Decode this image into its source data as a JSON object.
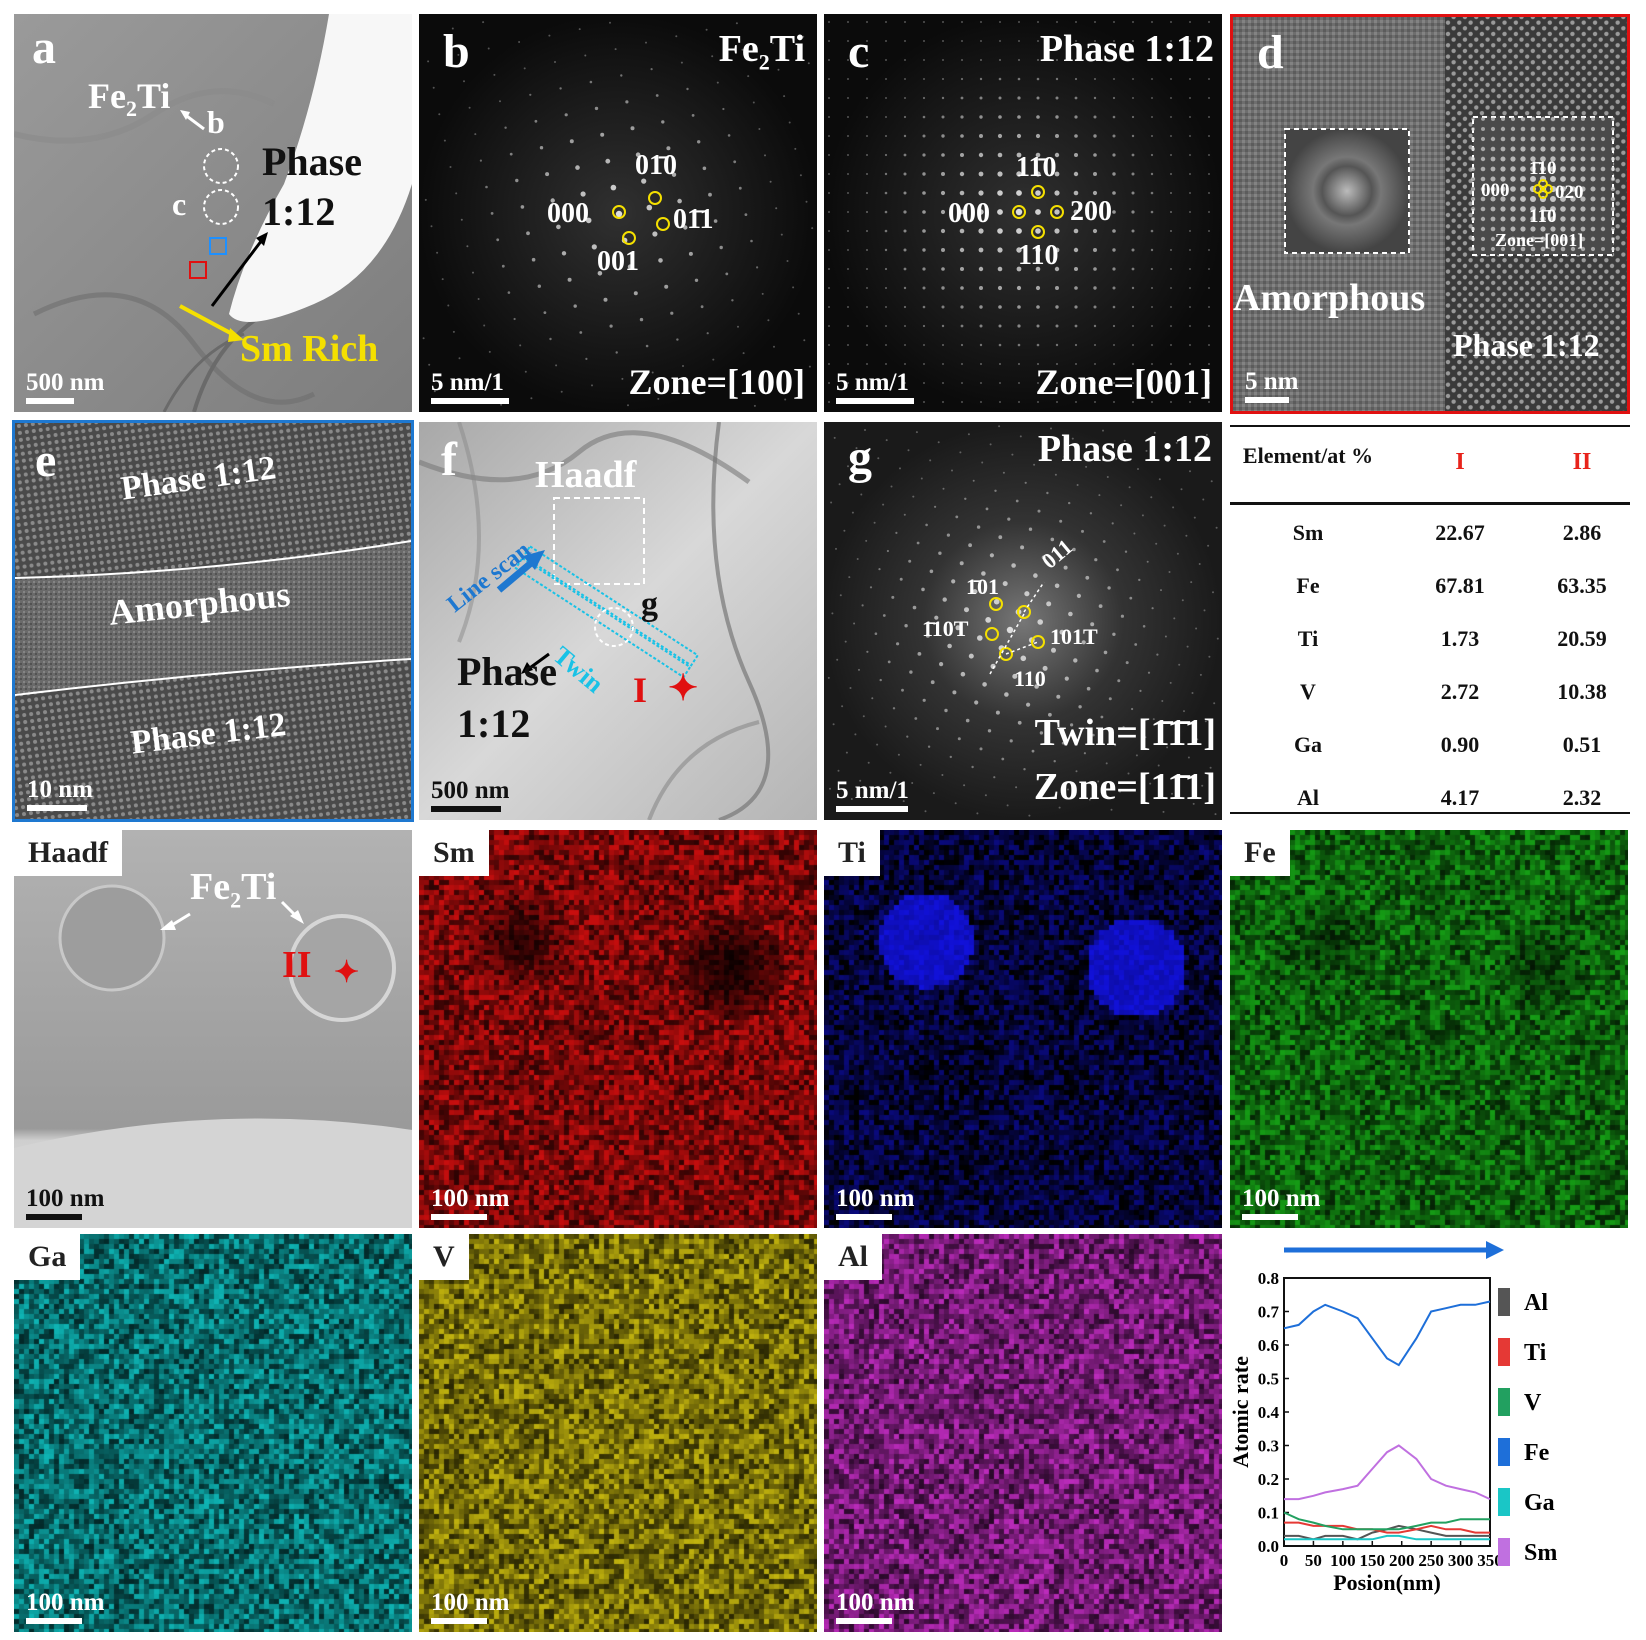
{
  "panel_a": {
    "label": "a",
    "fe2ti": "Fe",
    "fe2ti_sub": "2",
    "fe2ti_tail": "Ti",
    "b": "b",
    "c": "c",
    "phase": "Phase",
    "ratio": "1:12",
    "sm_rich": "Sm Rich",
    "scale": "500 nm"
  },
  "panel_b": {
    "label": "b",
    "title": "Fe",
    "title_sub": "2",
    "title_tail": "Ti",
    "spots": [
      "000",
      "01̄0",
      "01̄1",
      "001"
    ],
    "zone": "Zone=[100]",
    "scale": "5 nm/1"
  },
  "panel_c": {
    "label": "c",
    "title": "Phase 1:12",
    "spots": [
      "000",
      "11̄0",
      "200",
      "110"
    ],
    "zone": "Zone=[001]",
    "scale": "5 nm/1"
  },
  "panel_d": {
    "label": "d",
    "amorphous": "Amorphous",
    "phase": "Phase 1:12",
    "inset_spots": [
      "1̄10",
      "000",
      "020",
      "11̄0"
    ],
    "inset_zone": "Zone=[001]",
    "scale": "5 nm"
  },
  "panel_e": {
    "label": "e",
    "top": "Phase 1:12",
    "mid": "Amorphous",
    "bottom": "Phase 1:12",
    "scale": "10 nm"
  },
  "panel_f": {
    "label": "f",
    "haadf": "Haadf",
    "line_scan": "Line scan",
    "twin": "Twin",
    "g": "g",
    "phase": "Phase",
    "ratio": "1:12",
    "point": "I",
    "scale": "500 nm"
  },
  "panel_g": {
    "label": "g",
    "title": "Phase 1:12",
    "spots": [
      "1̄01",
      "011",
      "1̄10T",
      "101T",
      "110"
    ],
    "twin": "Twin=[1̄1̄1]",
    "zone": "Zone=[11̄1]",
    "scale": "5 nm/1"
  },
  "table": {
    "headers": [
      "Element/at %",
      "I",
      "II"
    ],
    "rows": [
      [
        "Sm",
        "22.67",
        "2.86"
      ],
      [
        "Fe",
        "67.81",
        "63.35"
      ],
      [
        "Ti",
        "1.73",
        "20.59"
      ],
      [
        "V",
        "2.72",
        "10.38"
      ],
      [
        "Ga",
        "0.90",
        "0.51"
      ],
      [
        "Al",
        "4.17",
        "2.32"
      ]
    ],
    "header_color": "#e8231b"
  },
  "maps": {
    "haadf": {
      "tag": "Haadf",
      "fe2ti": "Fe",
      "fe2ti_sub": "2",
      "fe2ti_tail": "Ti",
      "point": "II",
      "scale": "100 nm"
    },
    "sm": {
      "tag": "Sm",
      "scale": "100 nm",
      "color": "#e01010"
    },
    "ti": {
      "tag": "Ti",
      "scale": "100 nm",
      "color": "#1010c8"
    },
    "fe": {
      "tag": "Fe",
      "scale": "100 nm",
      "color": "#18b018"
    },
    "ga": {
      "tag": "Ga",
      "scale": "100 nm",
      "color": "#10c8c8"
    },
    "v": {
      "tag": "V",
      "scale": "100 nm",
      "color": "#d8c810"
    },
    "al": {
      "tag": "Al",
      "scale": "100 nm",
      "color": "#d030d0"
    }
  },
  "chart_data": {
    "type": "line",
    "xlabel": "Posion(nm)",
    "ylabel": "Atomic rate",
    "xlim": [
      0,
      350
    ],
    "ylim": [
      0,
      0.8
    ],
    "xticks": [
      0,
      50,
      100,
      150,
      200,
      250,
      300,
      350
    ],
    "yticks": [
      0.0,
      0.1,
      0.2,
      0.3,
      0.4,
      0.5,
      0.6,
      0.7,
      0.8
    ],
    "x": [
      0,
      25,
      50,
      70,
      100,
      125,
      150,
      175,
      195,
      225,
      250,
      275,
      300,
      325,
      350
    ],
    "series": [
      {
        "name": "Al",
        "color": "#555555",
        "values": [
          0.03,
          0.03,
          0.02,
          0.03,
          0.03,
          0.02,
          0.04,
          0.05,
          0.06,
          0.05,
          0.04,
          0.03,
          0.03,
          0.03,
          0.03
        ]
      },
      {
        "name": "Ti",
        "color": "#e53935",
        "values": [
          0.07,
          0.07,
          0.06,
          0.06,
          0.06,
          0.05,
          0.05,
          0.04,
          0.04,
          0.05,
          0.06,
          0.05,
          0.05,
          0.04,
          0.04
        ]
      },
      {
        "name": "V",
        "color": "#22a060",
        "values": [
          0.1,
          0.08,
          0.07,
          0.06,
          0.05,
          0.05,
          0.05,
          0.05,
          0.05,
          0.06,
          0.07,
          0.07,
          0.08,
          0.08,
          0.08
        ]
      },
      {
        "name": "Fe",
        "color": "#1e6fd9",
        "values": [
          0.65,
          0.66,
          0.7,
          0.72,
          0.7,
          0.68,
          0.62,
          0.56,
          0.54,
          0.62,
          0.7,
          0.71,
          0.72,
          0.72,
          0.73
        ]
      },
      {
        "name": "Ga",
        "color": "#1ac6c6",
        "values": [
          0.02,
          0.02,
          0.02,
          0.02,
          0.02,
          0.02,
          0.02,
          0.03,
          0.03,
          0.02,
          0.02,
          0.02,
          0.02,
          0.02,
          0.02
        ]
      },
      {
        "name": "Sm",
        "color": "#c070e0",
        "values": [
          0.14,
          0.14,
          0.15,
          0.16,
          0.17,
          0.18,
          0.23,
          0.28,
          0.3,
          0.26,
          0.2,
          0.18,
          0.17,
          0.16,
          0.14
        ]
      }
    ],
    "legend_position": "right",
    "arrow_color": "#1e6fd9"
  }
}
